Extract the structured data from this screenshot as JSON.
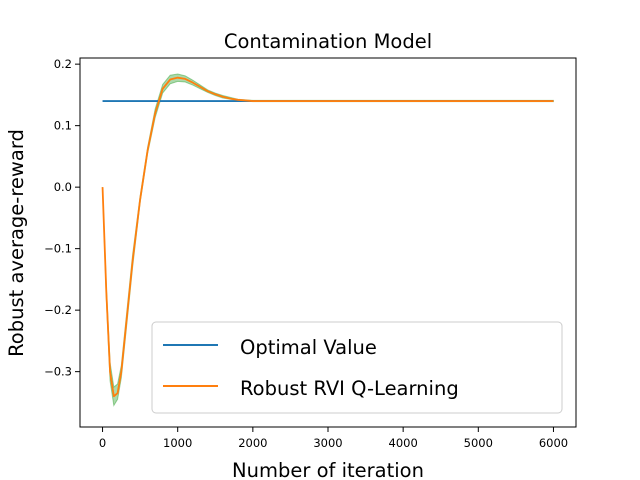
{
  "chart_data": {
    "type": "line",
    "title": "Contamination Model",
    "xlabel": "Number of iteration",
    "ylabel": "Robust average-reward",
    "xlim": [
      -300,
      6300
    ],
    "ylim": [
      -0.39,
      0.21
    ],
    "xticks": [
      0,
      1000,
      2000,
      3000,
      4000,
      5000,
      6000
    ],
    "xtick_labels": [
      "0",
      "1000",
      "2000",
      "3000",
      "4000",
      "5000",
      "6000"
    ],
    "yticks": [
      -0.3,
      -0.2,
      -0.1,
      0.0,
      0.1,
      0.2
    ],
    "ytick_labels": [
      "−0.3",
      "−0.2",
      "−0.1",
      "0.0",
      "0.1",
      "0.2"
    ],
    "grid": false,
    "legend_position": "lower-right",
    "series": [
      {
        "name": "Optimal Value",
        "color": "#1f77b4",
        "x": [
          0,
          6000
        ],
        "y": [
          0.14,
          0.14
        ]
      },
      {
        "name": "Robust RVI Q-Learning",
        "color": "#ff7f0e",
        "band_color": "#2ca02c",
        "x": [
          0,
          50,
          100,
          150,
          200,
          250,
          300,
          400,
          500,
          600,
          700,
          800,
          900,
          1000,
          1100,
          1200,
          1300,
          1400,
          1500,
          1600,
          1700,
          1800,
          1900,
          2000,
          2200,
          2500,
          3000,
          4000,
          5000,
          6000
        ],
        "y": [
          0.0,
          -0.17,
          -0.3,
          -0.34,
          -0.335,
          -0.3,
          -0.24,
          -0.12,
          -0.02,
          0.06,
          0.12,
          0.16,
          0.175,
          0.178,
          0.176,
          0.17,
          0.163,
          0.156,
          0.151,
          0.147,
          0.144,
          0.142,
          0.141,
          0.14,
          0.14,
          0.14,
          0.14,
          0.14,
          0.14,
          0.14
        ],
        "band_low": [
          0.0,
          -0.18,
          -0.315,
          -0.355,
          -0.345,
          -0.31,
          -0.25,
          -0.13,
          -0.025,
          0.055,
          0.113,
          0.153,
          0.168,
          0.172,
          0.171,
          0.166,
          0.16,
          0.154,
          0.149,
          0.145,
          0.143,
          0.141,
          0.14,
          0.139,
          0.139,
          0.139,
          0.139,
          0.139,
          0.139,
          0.139
        ],
        "band_high": [
          0.0,
          -0.16,
          -0.285,
          -0.325,
          -0.32,
          -0.29,
          -0.23,
          -0.11,
          -0.015,
          0.065,
          0.127,
          0.167,
          0.182,
          0.184,
          0.181,
          0.174,
          0.166,
          0.158,
          0.153,
          0.149,
          0.146,
          0.143,
          0.142,
          0.141,
          0.141,
          0.141,
          0.141,
          0.141,
          0.141,
          0.141
        ]
      }
    ]
  }
}
